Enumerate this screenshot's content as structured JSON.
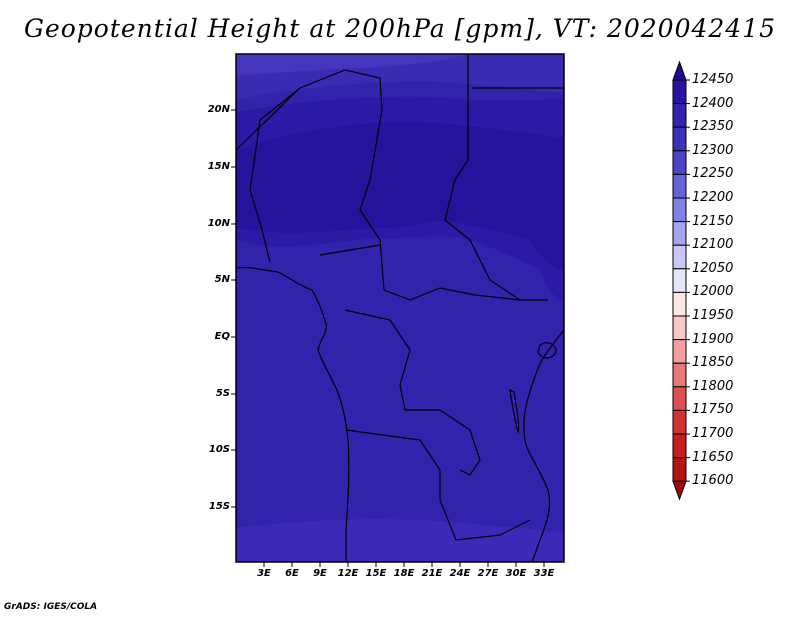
{
  "title": "Geopotential Height at 200hPa [gpm], VT: 2020042415",
  "credit": "GrADS: IGES/COLA",
  "map": {
    "lat_labels": [
      "20N",
      "15N",
      "10N",
      "5N",
      "EQ",
      "5S",
      "10S",
      "15S"
    ],
    "lon_labels": [
      "3E",
      "6E",
      "9E",
      "12E",
      "15E",
      "18E",
      "21E",
      "24E",
      "27E",
      "30E",
      "33E"
    ]
  },
  "colorbar": {
    "labels": [
      "12450",
      "12400",
      "12350",
      "12300",
      "12250",
      "12200",
      "12150",
      "12100",
      "12050",
      "12000",
      "11950",
      "11900",
      "11850",
      "11800",
      "11750",
      "11700",
      "11650",
      "11600"
    ],
    "colors": [
      "#1e0a8c",
      "#2814a0",
      "#3223ad",
      "#3c32b9",
      "#4b46c8",
      "#6464d6",
      "#8282e4",
      "#a5a5ef",
      "#c8c8f7",
      "#e6e6fb",
      "#fbe6e6",
      "#f7c8c8",
      "#f0a0a0",
      "#e67878",
      "#dc5050",
      "#d23232",
      "#c81e1e",
      "#b41414",
      "#a00a0a"
    ]
  },
  "colors": {
    "band_south_edge": "#3d29b8",
    "band_main": "#3223ad",
    "band_north_mid": "#2b1aa5",
    "band_north_max": "#25139c",
    "band_top": "#3223ad"
  }
}
